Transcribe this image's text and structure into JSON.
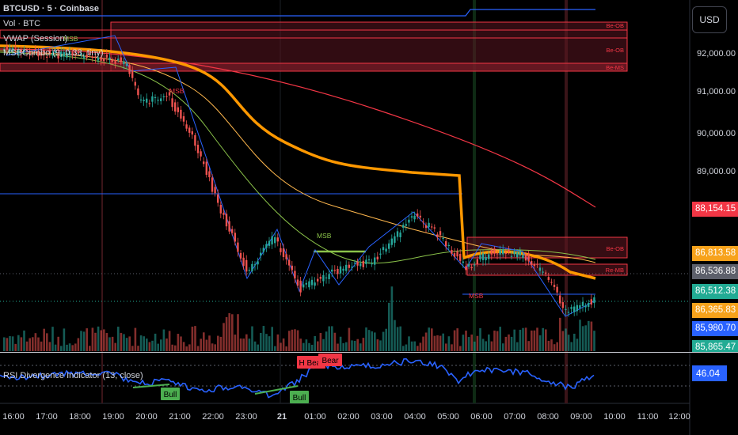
{
  "header": {
    "symbol_line": "BTCUSD · 5 · Coinbase",
    "vol_line": "Vol · BTC",
    "vwap_line": "VWAP (Session)",
    "msb_line": "MSBCombo (9, 0.33, tiny)",
    "rsi_line": "RSI Divergence Indicator (13, close)"
  },
  "currency_badge": "USD",
  "price_axis": [
    "92,000.00",
    "91,000.00",
    "90,000.00",
    "89,000.00"
  ],
  "price_tags": [
    {
      "text": "88,154.15",
      "color": "#f23645"
    },
    {
      "text": "86,813.58",
      "color": "#f7a21b"
    },
    {
      "text": "86,536.88",
      "color": "#5d606b"
    },
    {
      "text": "86,512.38",
      "color": "#22ab94"
    },
    {
      "text": "86,365.83",
      "color": "#f7a21b"
    },
    {
      "text": "85,980.70",
      "color": "#2962ff"
    },
    {
      "text": "85,865.47",
      "color": "#22ab94"
    }
  ],
  "time_axis": [
    "16:00",
    "17:00",
    "18:00",
    "19:00",
    "20:00",
    "21:00",
    "22:00",
    "23:00",
    "21",
    "01:00",
    "02:00",
    "03:00",
    "04:00",
    "05:00",
    "06:00",
    "07:00",
    "08:00",
    "09:00",
    "10:00",
    "11:00",
    "12:00"
  ],
  "rsi_value": "46.04",
  "annotations": {
    "msb_1": "MSB",
    "msb_2": "MSB",
    "msb_3": "MSB",
    "msb_4": "MSB",
    "beob_1": "Be-OB",
    "beob_2": "Be-OB",
    "beob_3": "Be-OB",
    "bems_1": "Be-MS",
    "beob_4": "Be-OB",
    "bems_2": "Re-MB",
    "bull_1": "Bull",
    "bull_2": "Bull",
    "hbear": "H Bear",
    "bear": "Bear"
  },
  "colors": {
    "up": "#26a69a",
    "down": "#ef5350",
    "vwap": "#ff9800",
    "ma_slow": "#f23645",
    "ma_mid": "#8bc34a",
    "zigzag": "#2962ff",
    "rsi": "#2962ff"
  }
}
